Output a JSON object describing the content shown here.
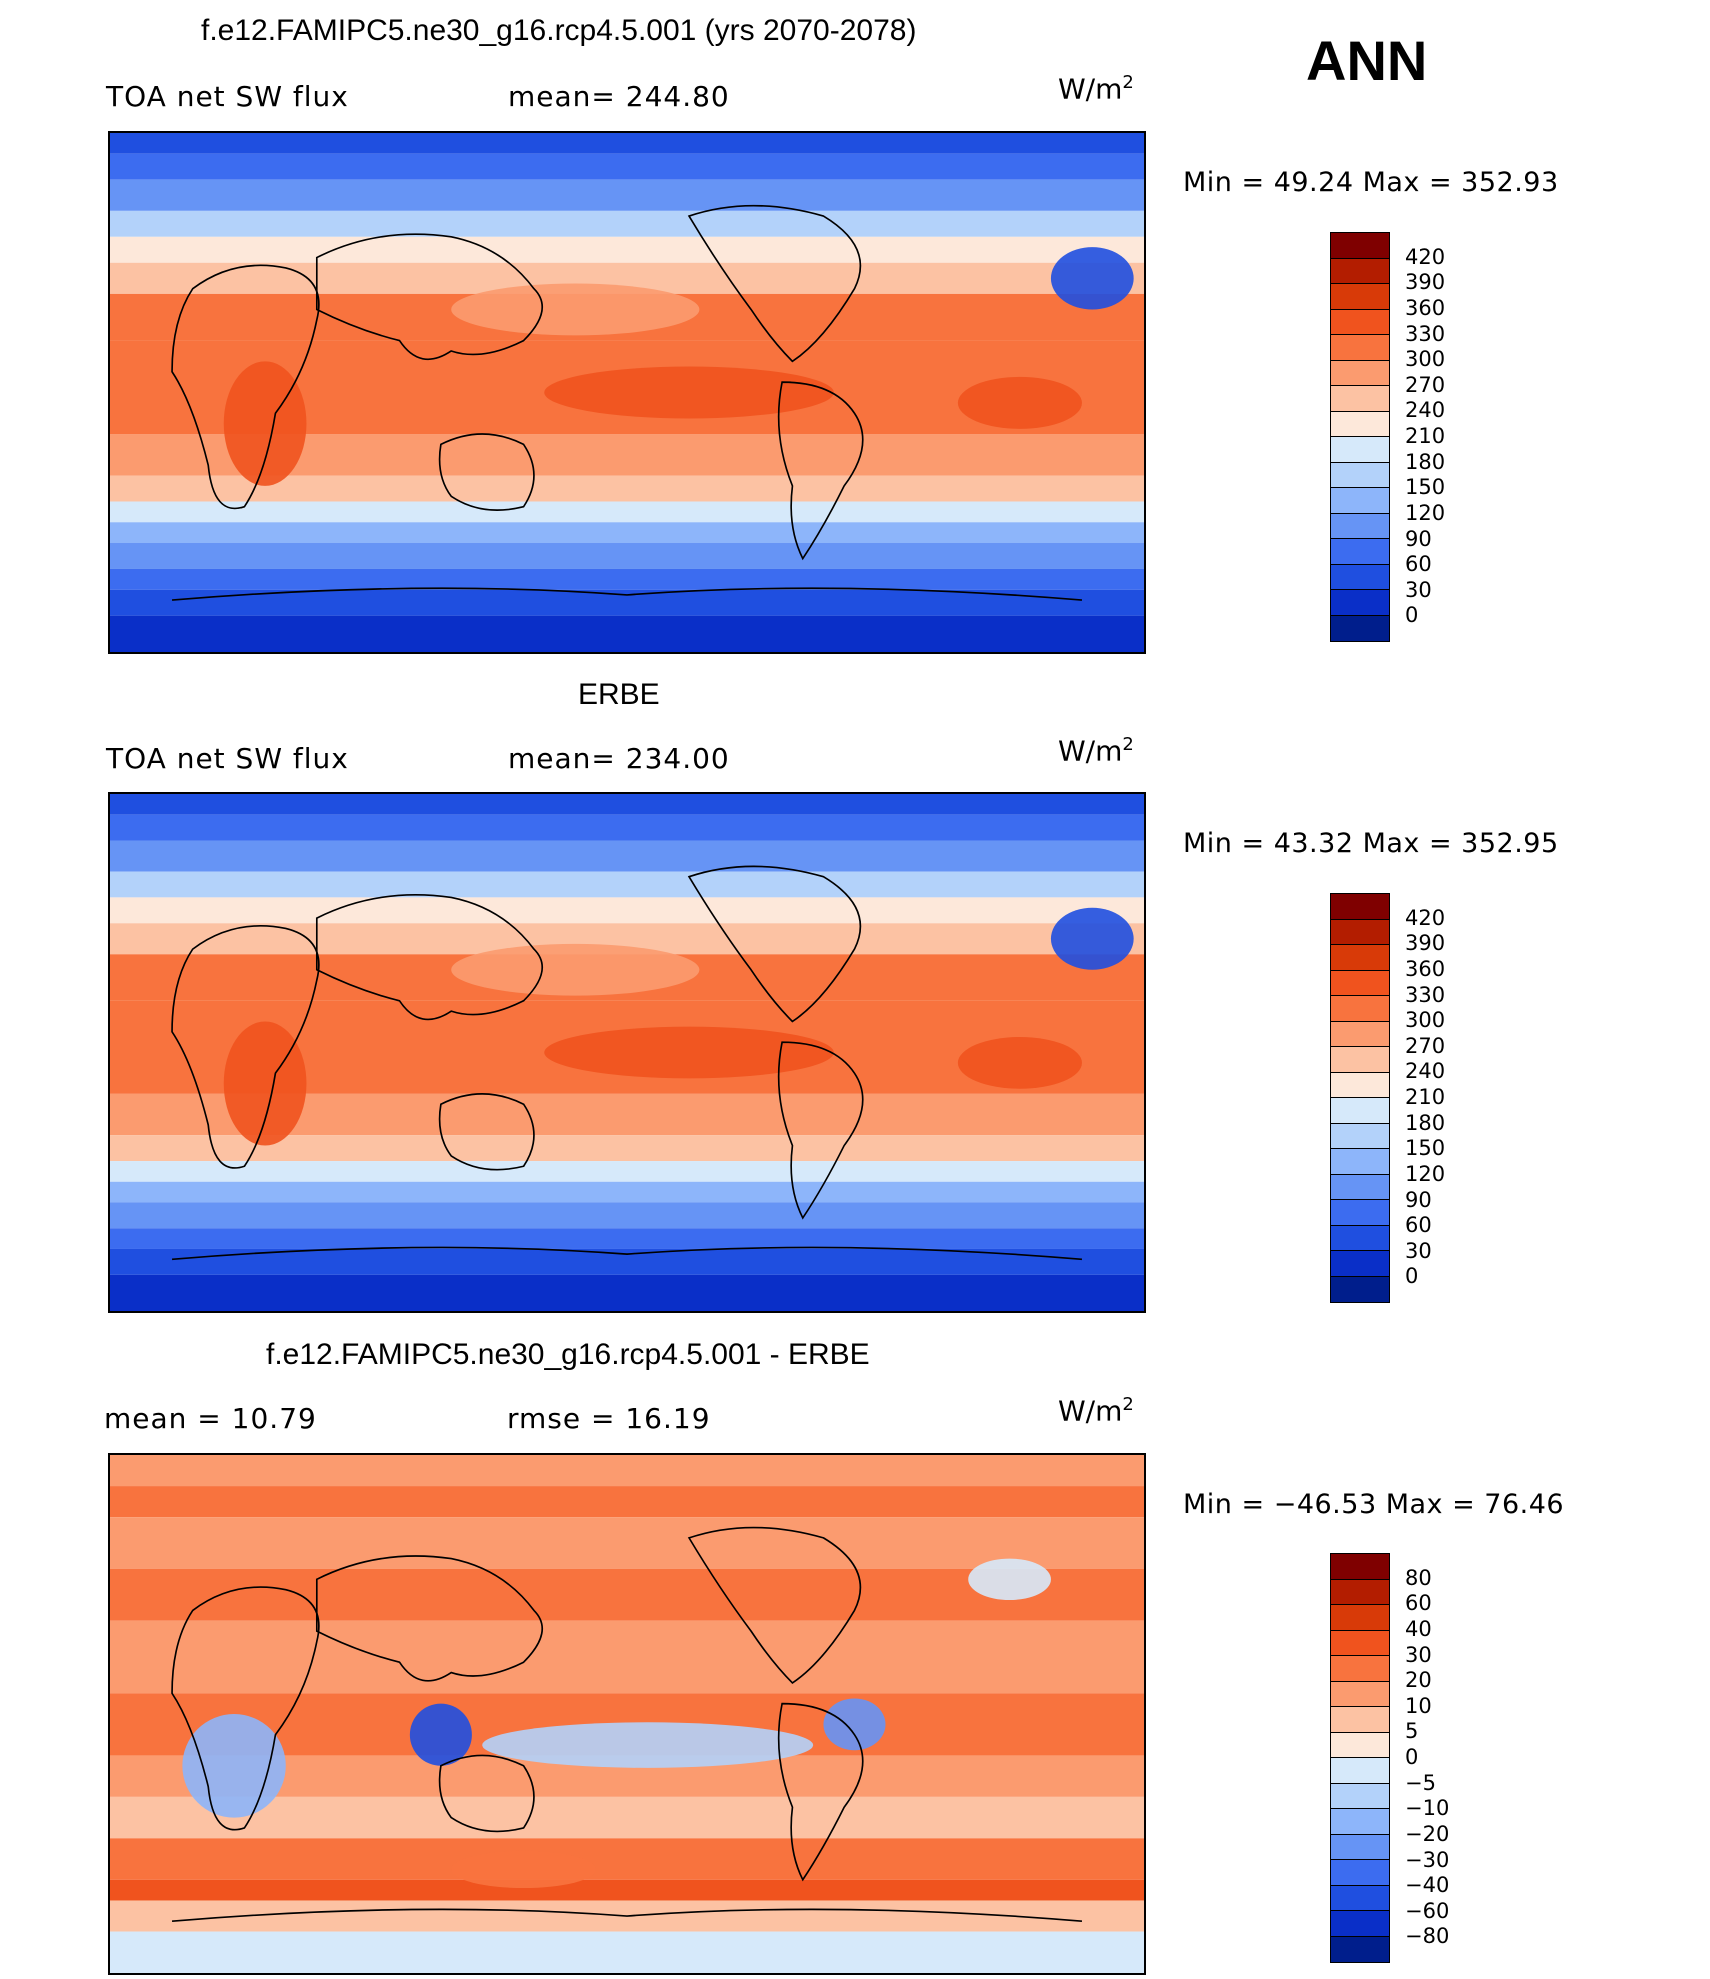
{
  "season": "ANN",
  "panels": [
    {
      "title": "f.e12.FAMIPC5.ne30_g16.rcp4.5.001 (yrs 2070-2078)",
      "left_label": "TOA net SW flux",
      "middle_label": "mean= 244.80",
      "units": "W/m",
      "units_sup": "2",
      "minmax": "Min =   49.24 Max = 352.93",
      "field": "model",
      "colorbar": {
        "labels": [
          "420",
          "390",
          "360",
          "330",
          "300",
          "270",
          "240",
          "210",
          "180",
          "150",
          "120",
          "90",
          "60",
          "30",
          "0"
        ],
        "colors": [
          "#7f0000",
          "#b31d00",
          "#d83a08",
          "#f0531e",
          "#f8733e",
          "#fb9b6f",
          "#fcc2a3",
          "#fde8da",
          "#d6e9fa",
          "#b3d2fa",
          "#8db5fa",
          "#6694f5",
          "#3c6cf0",
          "#1f4fe0",
          "#0a2fc8",
          "#001e8c"
        ]
      }
    },
    {
      "title": "ERBE",
      "left_label": "TOA net SW flux",
      "middle_label": "mean= 234.00",
      "units": "W/m",
      "units_sup": "2",
      "minmax": "Min =   43.32 Max = 352.95",
      "field": "obs",
      "colorbar": {
        "labels": [
          "420",
          "390",
          "360",
          "330",
          "300",
          "270",
          "240",
          "210",
          "180",
          "150",
          "120",
          "90",
          "60",
          "30",
          "0"
        ],
        "colors": [
          "#7f0000",
          "#b31d00",
          "#d83a08",
          "#f0531e",
          "#f8733e",
          "#fb9b6f",
          "#fcc2a3",
          "#fde8da",
          "#d6e9fa",
          "#b3d2fa",
          "#8db5fa",
          "#6694f5",
          "#3c6cf0",
          "#1f4fe0",
          "#0a2fc8",
          "#001e8c"
        ]
      }
    },
    {
      "title": "f.e12.FAMIPC5.ne30_g16.rcp4.5.001 - ERBE",
      "left_label": "mean =   10.79",
      "middle_label": "rmse =   16.19",
      "units": "W/m",
      "units_sup": "2",
      "minmax": "Min = −46.53 Max =   76.46",
      "field": "diff",
      "colorbar": {
        "labels": [
          "80",
          "60",
          "40",
          "30",
          "20",
          "10",
          "5",
          "0",
          "−5",
          "−10",
          "−20",
          "−30",
          "−40",
          "−60",
          "−80"
        ],
        "colors": [
          "#7f0000",
          "#b31d00",
          "#d83a08",
          "#f0531e",
          "#f8733e",
          "#fb9b6f",
          "#fcc2a3",
          "#fde8da",
          "#d6e9fa",
          "#b3d2fa",
          "#8db5fa",
          "#6694f5",
          "#3c6cf0",
          "#1f4fe0",
          "#0a2fc8",
          "#001e8c"
        ]
      }
    }
  ]
}
